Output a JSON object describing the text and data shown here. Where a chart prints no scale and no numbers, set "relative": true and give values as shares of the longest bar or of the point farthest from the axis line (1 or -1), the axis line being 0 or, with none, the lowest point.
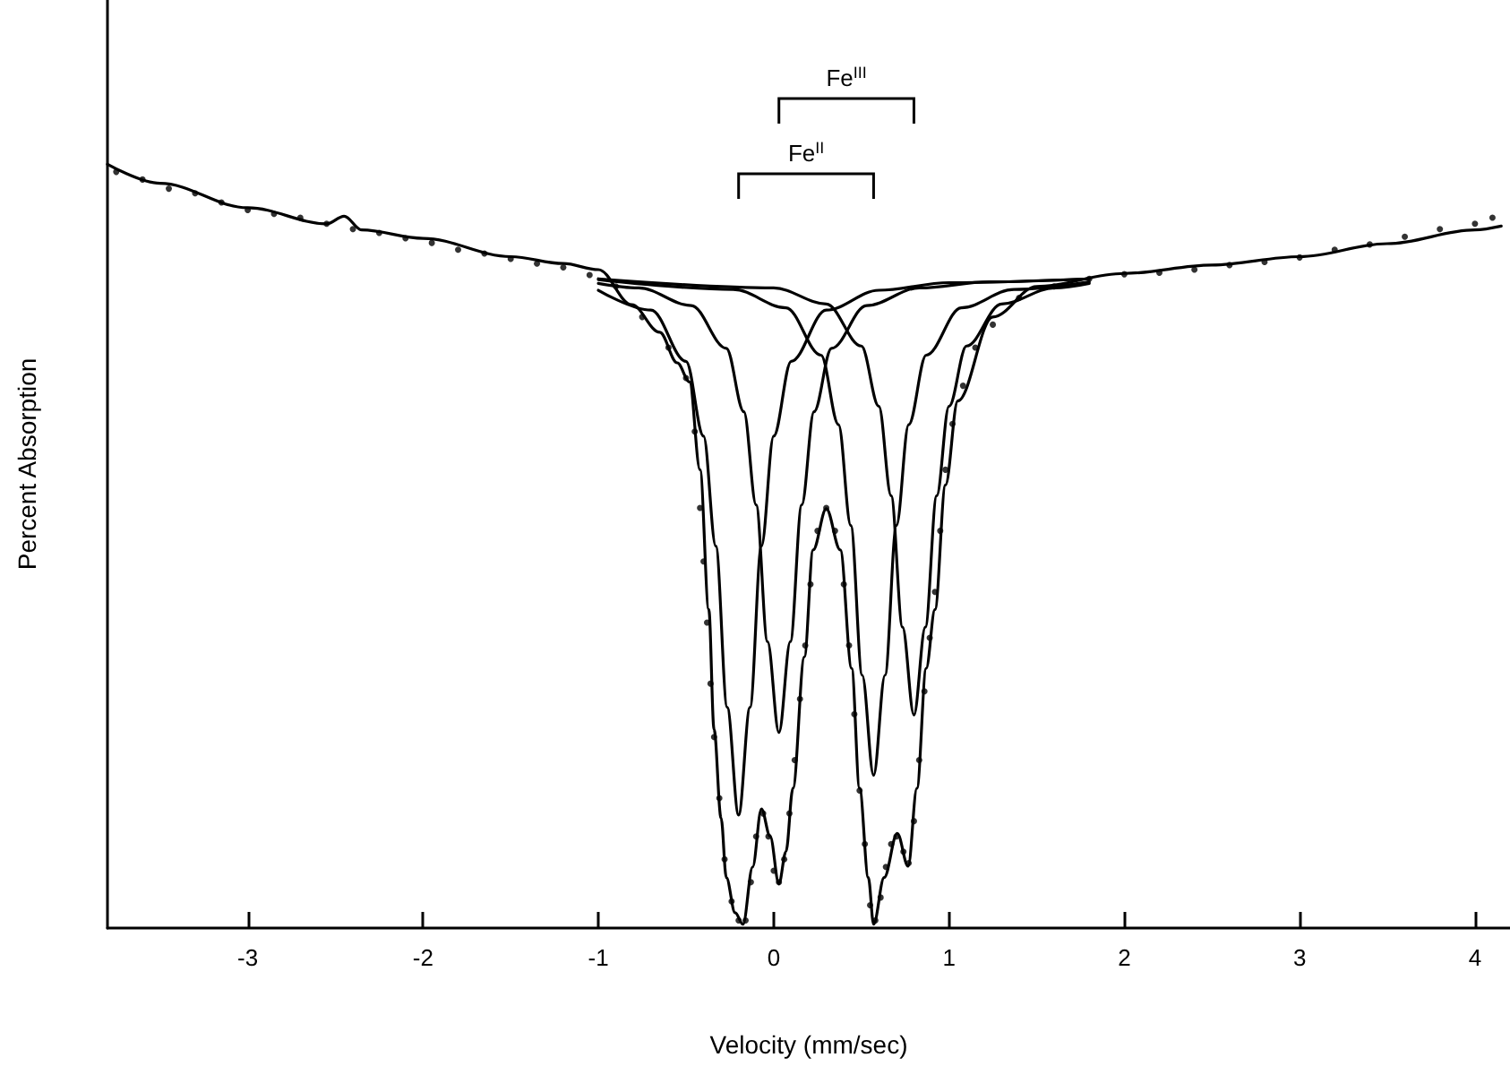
{
  "chart_data": {
    "type": "line",
    "xlabel": "Velocity (mm/sec)",
    "ylabel": "Percent Absorption",
    "relative": true,
    "xlim": [
      -3.8,
      4.2
    ],
    "xticks": [
      -3,
      -2,
      -1,
      0,
      1,
      2,
      3,
      4
    ],
    "grid": false,
    "marker": "none",
    "line_style": "solid",
    "annotations": [
      "Fe$^{III}$",
      "Fe$^{II}$"
    ],
    "series": [
      {
        "type": "scatter",
        "marker": "circle",
        "color": "#000000",
        "x": [
          -3.75,
          -3.6,
          -3.45,
          -3.3,
          -3.15,
          -3.0,
          -2.85,
          -2.7,
          -2.55,
          -2.4,
          -2.25,
          -2.1,
          -1.95,
          -1.8,
          -1.65,
          -1.5,
          -1.35,
          -1.2,
          -1.05,
          -0.9,
          -0.75,
          -0.6,
          -0.5,
          -0.45,
          -0.42,
          -0.4,
          -0.38,
          -0.36,
          -0.34,
          -0.31,
          -0.28,
          -0.24,
          -0.2,
          -0.16,
          -0.13,
          -0.1,
          -0.06,
          -0.03,
          0.0,
          0.03,
          0.06,
          0.09,
          0.12,
          0.15,
          0.18,
          0.21,
          0.25,
          0.3,
          0.35,
          0.4,
          0.43,
          0.46,
          0.49,
          0.52,
          0.55,
          0.58,
          0.61,
          0.64,
          0.67,
          0.7,
          0.74,
          0.77,
          0.8,
          0.83,
          0.86,
          0.89,
          0.92,
          0.95,
          0.98,
          1.02,
          1.08,
          1.15,
          1.25,
          1.4,
          1.6,
          1.8,
          2.0,
          2.2,
          2.4,
          2.6,
          2.8,
          3.0,
          3.2,
          3.4,
          3.6,
          3.8,
          4.0,
          4.1
        ],
        "values": [
          0.99,
          0.98,
          0.968,
          0.962,
          0.95,
          0.94,
          0.935,
          0.93,
          0.922,
          0.915,
          0.91,
          0.903,
          0.897,
          0.888,
          0.883,
          0.876,
          0.87,
          0.865,
          0.855,
          0.84,
          0.8,
          0.76,
          0.72,
          0.65,
          0.55,
          0.48,
          0.4,
          0.32,
          0.25,
          0.17,
          0.09,
          0.035,
          0.01,
          0.01,
          0.06,
          0.12,
          0.15,
          0.12,
          0.075,
          0.06,
          0.09,
          0.15,
          0.22,
          0.3,
          0.37,
          0.45,
          0.52,
          0.55,
          0.52,
          0.45,
          0.37,
          0.28,
          0.18,
          0.11,
          0.03,
          0.01,
          0.04,
          0.08,
          0.11,
          0.12,
          0.1,
          0.085,
          0.14,
          0.22,
          0.31,
          0.38,
          0.44,
          0.52,
          0.6,
          0.66,
          0.71,
          0.76,
          0.79,
          0.825,
          0.84,
          0.85,
          0.856,
          0.858,
          0.862,
          0.868,
          0.872,
          0.878,
          0.888,
          0.895,
          0.905,
          0.915,
          0.922,
          0.93
        ]
      },
      {
        "color": "#000000",
        "x": [
          -3.8,
          -3.5,
          -3.0,
          -2.55,
          -2.45,
          -2.35,
          -2.0,
          -1.5,
          -1.2,
          -1.0,
          -0.81,
          -0.65,
          -0.55,
          -0.48,
          -0.42,
          -0.37,
          -0.34,
          -0.3,
          -0.27,
          -0.22,
          -0.175,
          -0.12,
          -0.07,
          -0.02,
          0.03,
          0.07,
          0.11,
          0.175,
          0.225,
          0.3,
          0.38,
          0.445,
          0.49,
          0.54,
          0.57,
          0.63,
          0.705,
          0.767,
          0.817,
          0.87,
          0.92,
          0.98,
          1.05,
          1.25,
          1.5,
          2.0,
          2.5,
          3.0,
          3.5,
          4.0,
          4.15
        ],
        "values": [
          1.0,
          0.975,
          0.943,
          0.922,
          0.932,
          0.914,
          0.903,
          0.879,
          0.87,
          0.862,
          0.816,
          0.78,
          0.74,
          0.715,
          0.6,
          0.417,
          0.26,
          0.144,
          0.066,
          0.02,
          0.005,
          0.08,
          0.156,
          0.12,
          0.058,
          0.1,
          0.183,
          0.355,
          0.495,
          0.549,
          0.495,
          0.34,
          0.183,
          0.066,
          0.005,
          0.066,
          0.124,
          0.081,
          0.183,
          0.34,
          0.417,
          0.58,
          0.69,
          0.8,
          0.84,
          0.857,
          0.868,
          0.879,
          0.896,
          0.914,
          0.919
        ]
      },
      {
        "color": "#000000",
        "x": [
          -1.0,
          -0.7,
          -0.5,
          -0.4,
          -0.33,
          -0.265,
          -0.2,
          -0.135,
          -0.07,
          0.0,
          0.1,
          0.3,
          0.6,
          1.0,
          1.8
        ],
        "values": [
          0.835,
          0.809,
          0.742,
          0.644,
          0.5,
          0.289,
          0.148,
          0.289,
          0.5,
          0.644,
          0.742,
          0.809,
          0.835,
          0.845,
          0.85
        ]
      },
      {
        "color": "#000000",
        "x": [
          -1.0,
          -0.77,
          -0.47,
          -0.27,
          -0.17,
          -0.1,
          -0.035,
          0.03,
          0.095,
          0.16,
          0.23,
          0.33,
          0.53,
          0.83,
          1.23,
          1.8
        ],
        "values": [
          0.844,
          0.838,
          0.815,
          0.759,
          0.676,
          0.554,
          0.375,
          0.256,
          0.375,
          0.554,
          0.676,
          0.759,
          0.815,
          0.838,
          0.846,
          0.85
        ]
      },
      {
        "color": "#000000",
        "x": [
          -1.0,
          -0.23,
          0.07,
          0.27,
          0.37,
          0.44,
          0.505,
          0.57,
          0.635,
          0.7,
          0.77,
          0.87,
          1.07,
          1.37,
          1.8
        ],
        "values": [
          0.849,
          0.836,
          0.812,
          0.75,
          0.659,
          0.527,
          0.331,
          0.2,
          0.331,
          0.527,
          0.659,
          0.75,
          0.812,
          0.836,
          0.846
        ]
      },
      {
        "color": "#000000",
        "x": [
          -1.0,
          0.0,
          0.3,
          0.5,
          0.6,
          0.67,
          0.735,
          0.8,
          0.865,
          0.93,
          1.0,
          1.1,
          1.3,
          1.6,
          1.8
        ],
        "values": [
          0.85,
          0.838,
          0.817,
          0.762,
          0.683,
          0.566,
          0.394,
          0.279,
          0.394,
          0.566,
          0.683,
          0.762,
          0.817,
          0.838,
          0.844
        ]
      }
    ]
  }
}
